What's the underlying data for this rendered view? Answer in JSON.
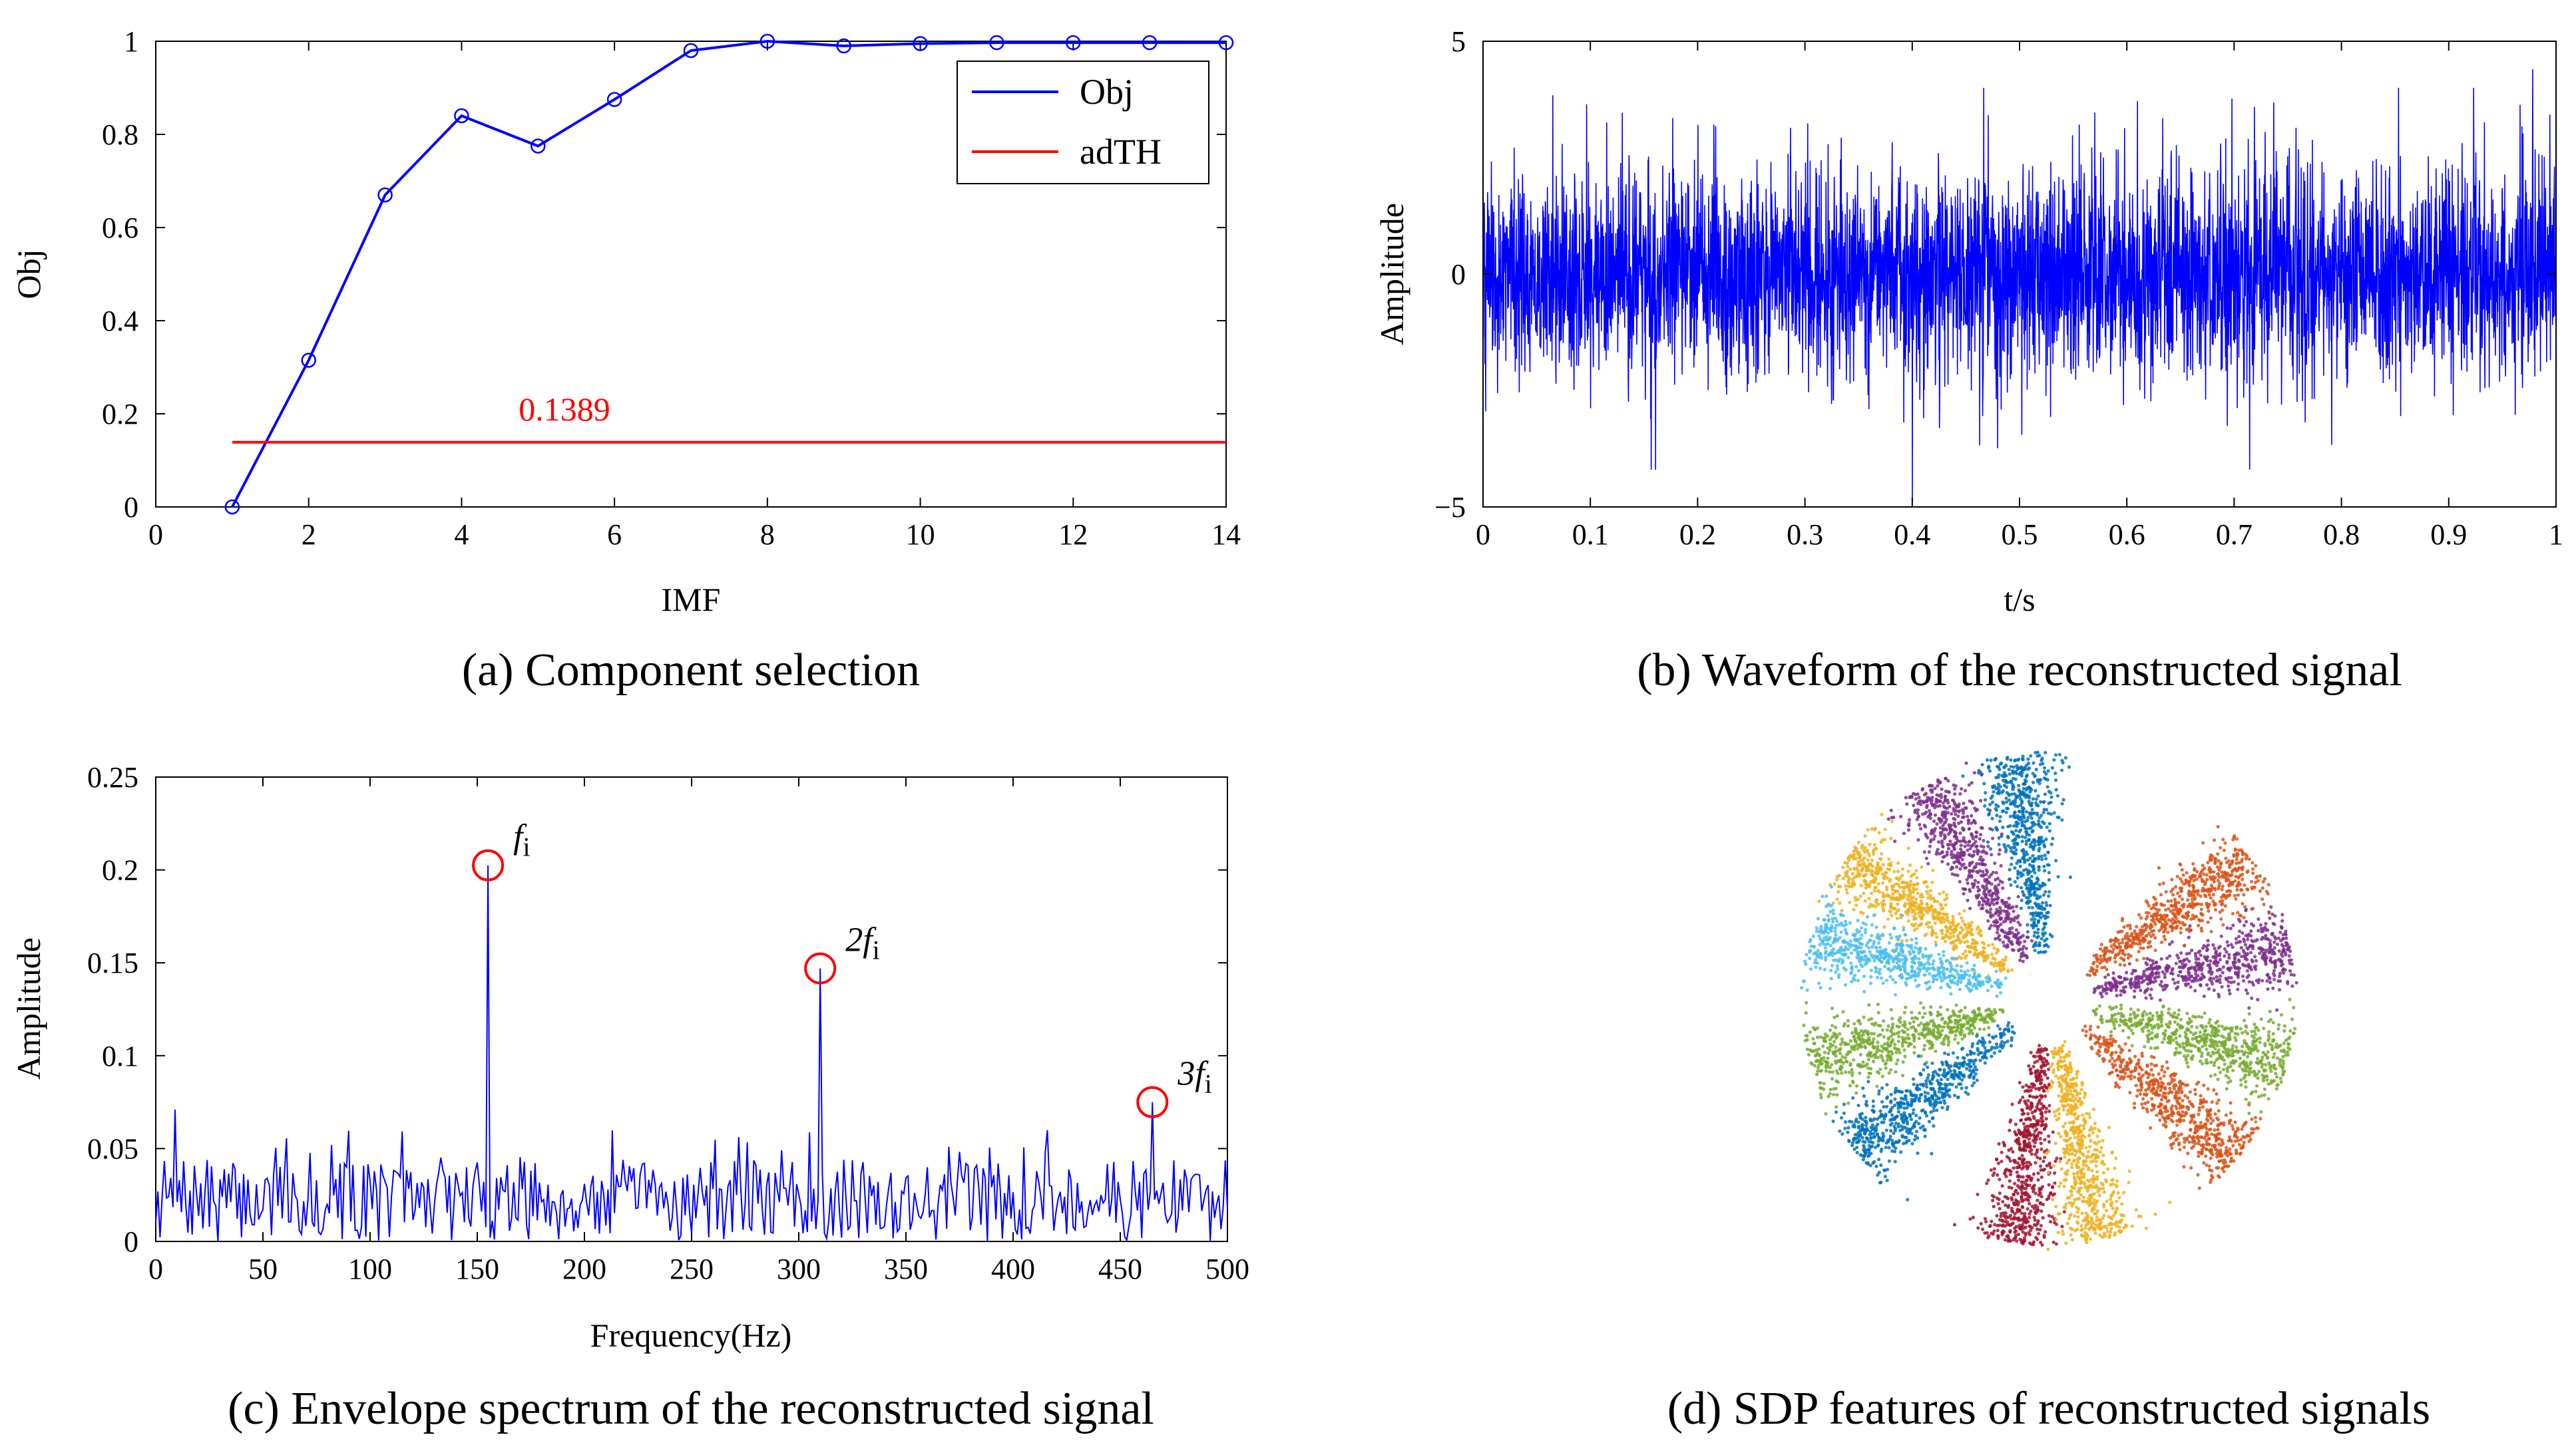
{
  "chart_data": [
    {
      "panel": "a",
      "type": "line",
      "caption": "(a) Component selection",
      "xlabel": "IMF",
      "ylabel": "Obj",
      "xlim": [
        0,
        14
      ],
      "ylim": [
        0,
        1
      ],
      "xticks": [
        0,
        2,
        4,
        6,
        8,
        10,
        12,
        14
      ],
      "yticks": [
        0,
        0.2,
        0.4,
        0.6,
        0.8,
        1
      ],
      "legend_position": "top-right",
      "series": [
        {
          "name": "Obj",
          "color": "#0000ff",
          "marker": "circle",
          "x": [
            1,
            2,
            3,
            4,
            5,
            6,
            7,
            8,
            9,
            10,
            11,
            12,
            13,
            14
          ],
          "y": [
            0.0,
            0.315,
            0.67,
            0.84,
            0.775,
            0.875,
            0.98,
            1.0,
            0.99,
            0.995,
            0.997,
            0.997,
            0.997,
            0.997
          ]
        },
        {
          "name": "adTH",
          "color": "#ff0000",
          "x": [
            1,
            14
          ],
          "y": [
            0.1389,
            0.1389
          ]
        }
      ],
      "annotation": "0.1389"
    },
    {
      "panel": "b",
      "type": "line",
      "caption": "(b)  Waveform of the reconstructed signal",
      "xlabel": "t/s",
      "ylabel": "Amplitude",
      "xlim": [
        0,
        1
      ],
      "ylim": [
        -5,
        5
      ],
      "xticks": [
        "0",
        "0.1",
        "0.2",
        "0.3",
        "0.4",
        "0.5",
        "0.6",
        "0.7",
        "0.8",
        "0.9",
        "1"
      ],
      "yticks": [
        "−5",
        "0",
        "5"
      ],
      "series": [
        {
          "color": "#0000ff",
          "samples": 4000,
          "seed": 42,
          "std": 1.1,
          "peak_max": 4.4,
          "peak_min": -4.9
        }
      ]
    },
    {
      "panel": "c",
      "type": "line",
      "caption": "(c) Envelope spectrum of the reconstructed signal",
      "xlabel": "Frequency(Hz)",
      "ylabel": "Amplitude",
      "xlim": [
        0,
        500
      ],
      "ylim": [
        0,
        0.25
      ],
      "xticks": [
        0,
        50,
        100,
        150,
        200,
        250,
        300,
        350,
        400,
        450,
        500
      ],
      "yticks": [
        "0",
        "0.05",
        "0.1",
        "0.15",
        "0.2",
        "0.25"
      ],
      "series": [
        {
          "color": "#0000ff",
          "seed": 7,
          "noise_mean": 0.022,
          "noise_max": 0.06
        }
      ],
      "peaks": [
        {
          "label": "f",
          "sub": "i",
          "x": 155,
          "y": 0.2025
        },
        {
          "label": "2f",
          "sub": "i",
          "x": 310,
          "y": 0.147
        },
        {
          "label": "3f",
          "sub": "i",
          "x": 465,
          "y": 0.075
        }
      ],
      "marker_color": "#ff0000"
    },
    {
      "panel": "d",
      "type": "scatter",
      "caption": "(d) SDP features of reconstructed signals",
      "petals": [
        {
          "angle": 98,
          "color": "#0072bd"
        },
        {
          "angle": 120,
          "color": "#7e2f8e"
        },
        {
          "angle": 145,
          "color": "#edb120"
        },
        {
          "angle": 165,
          "color": "#4dbeee"
        },
        {
          "angle": 195,
          "color": "#77ac30"
        },
        {
          "angle": 218,
          "color": "#0072bd"
        },
        {
          "angle": 262,
          "color": "#a2142f"
        },
        {
          "angle": 282,
          "color": "#edb120"
        },
        {
          "angle": 320,
          "color": "#d95319"
        },
        {
          "angle": 345,
          "color": "#77ac30"
        },
        {
          "angle": 12,
          "color": "#7e2f8e"
        },
        {
          "angle": 35,
          "color": "#d95319"
        }
      ]
    }
  ]
}
